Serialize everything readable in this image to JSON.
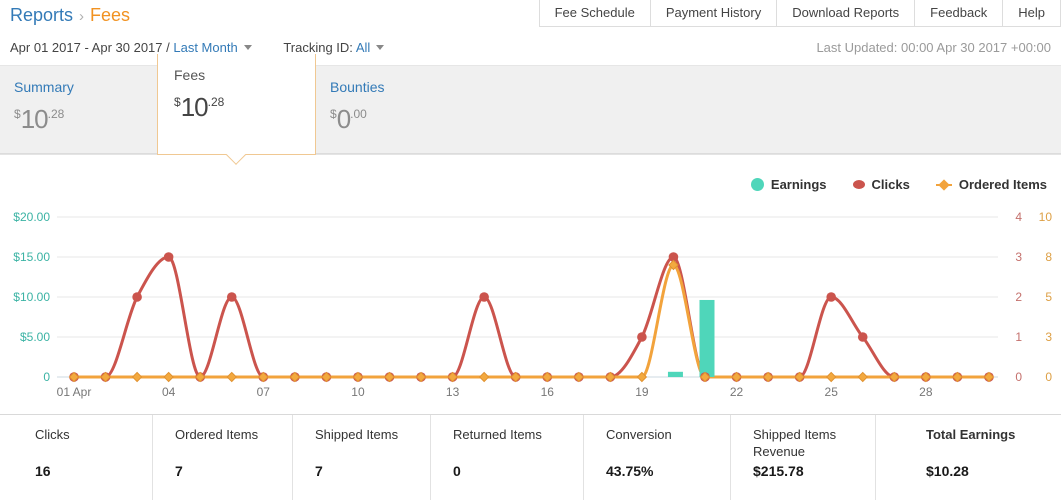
{
  "breadcrumb": {
    "section": "Reports",
    "separator": "›",
    "current": "Fees"
  },
  "header_buttons": [
    "Fee Schedule",
    "Payment History",
    "Download Reports",
    "Feedback",
    "Help"
  ],
  "filters": {
    "date_range": "Apr 01 2017 - Apr 30 2017 /",
    "date_preset": "Last Month",
    "tracking_label": "Tracking ID:",
    "tracking_value": "All",
    "last_updated": "Last Updated: 00:00 Apr 30 2017 +00:00"
  },
  "tabs": [
    {
      "label": "Summary",
      "currency": "$",
      "dollars": "10",
      "cents": ".28",
      "active": false
    },
    {
      "label": "Fees",
      "currency": "$",
      "dollars": "10",
      "cents": ".28",
      "active": true
    },
    {
      "label": "Bounties",
      "currency": "$",
      "dollars": "0",
      "cents": ".00",
      "active": false
    }
  ],
  "chart_data": {
    "type": "line+bar",
    "x_days": [
      1,
      2,
      3,
      4,
      5,
      6,
      7,
      8,
      9,
      10,
      11,
      12,
      13,
      14,
      15,
      16,
      17,
      18,
      19,
      20,
      21,
      22,
      23,
      24,
      25,
      26,
      27,
      28,
      29,
      30
    ],
    "x_tick_days": [
      1,
      4,
      7,
      10,
      13,
      16,
      19,
      22,
      25,
      28
    ],
    "x_tick_labels": [
      "01 Apr",
      "04",
      "07",
      "10",
      "13",
      "16",
      "19",
      "22",
      "25",
      "28"
    ],
    "left_axis": {
      "labels": [
        "$20.00",
        "$15.00",
        "$10.00",
        "$5.00",
        "0"
      ],
      "max": 20,
      "color": "#3bb3a4"
    },
    "right_axis_clicks": {
      "labels": [
        "4",
        "3",
        "2",
        "1",
        "0"
      ],
      "max": 4,
      "color": "#c4706c"
    },
    "right_axis_ordered": {
      "labels": [
        "10",
        "8",
        "5",
        "3",
        "0"
      ],
      "max": 10,
      "color": "#dd9f44"
    },
    "grid_color": "#e7e7e7",
    "zero_line_color": "#ccd9e0",
    "x_label_color": "#777777",
    "series": [
      {
        "name": "Earnings",
        "type": "bar",
        "axis": "dollars",
        "color": "#4fd6ba",
        "values": [
          0,
          0,
          0,
          0,
          0,
          0,
          0,
          0,
          0,
          0,
          0,
          0,
          0,
          0,
          0,
          0,
          0,
          0,
          0,
          0.65,
          9.63,
          0,
          0,
          0,
          0,
          0,
          0,
          0,
          0,
          0
        ]
      },
      {
        "name": "Clicks",
        "type": "line",
        "axis": "clicks",
        "color": "#cb544d",
        "marker": "circle",
        "values": [
          0,
          0,
          2,
          3,
          0,
          2,
          0,
          0,
          0,
          0,
          0,
          0,
          0,
          2,
          0,
          0,
          0,
          0,
          1,
          3,
          0,
          0,
          0,
          0,
          2,
          1,
          0,
          0,
          0,
          0
        ]
      },
      {
        "name": "Ordered Items",
        "type": "line",
        "axis": "ordered",
        "color": "#f2a33c",
        "marker": "diamond",
        "marker_fill": "#f3a93f",
        "marker_stroke": "#e0912f",
        "values": [
          0,
          0,
          0,
          0,
          0,
          0,
          0,
          0,
          0,
          0,
          0,
          0,
          0,
          0,
          0,
          0,
          0,
          0,
          0,
          7,
          0,
          0,
          0,
          0,
          0,
          0,
          0,
          0,
          0,
          0
        ]
      }
    ],
    "legend": [
      {
        "label": "Earnings",
        "color": "#4fd6ba",
        "shape": "circle"
      },
      {
        "label": "Clicks",
        "color": "#cb544d",
        "shape": "lens"
      },
      {
        "label": "Ordered Items",
        "color": "#f2a33c",
        "shape": "diamond"
      }
    ]
  },
  "summary_table": {
    "columns": [
      {
        "label": "Clicks",
        "value": "16"
      },
      {
        "label": "Ordered Items",
        "value": "7"
      },
      {
        "label": "Shipped Items",
        "value": "7"
      },
      {
        "label": "Returned Items",
        "value": "0"
      },
      {
        "label": "Conversion",
        "value": "43.75%"
      },
      {
        "label": "Shipped Items Revenue",
        "value": "$215.78"
      },
      {
        "label": "Total Earnings",
        "value": "$10.28"
      }
    ]
  }
}
